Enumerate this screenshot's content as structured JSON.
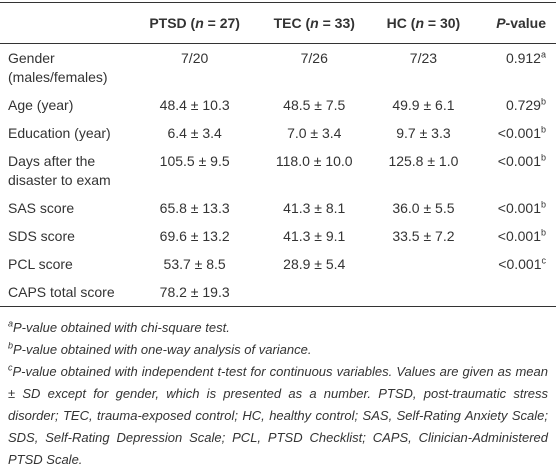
{
  "table": {
    "header": [
      [],
      [
        {
          "text": "PTSD ("
        },
        {
          "text": "n",
          "italic": true
        },
        {
          "text": " = 27)"
        }
      ],
      [
        {
          "text": "TEC ("
        },
        {
          "text": "n",
          "italic": true
        },
        {
          "text": " = 33)"
        }
      ],
      [
        {
          "text": "HC ("
        },
        {
          "text": "n",
          "italic": true
        },
        {
          "text": " = 30)"
        }
      ],
      [
        {
          "text": "P",
          "italic": true
        },
        {
          "text": "-value"
        }
      ]
    ],
    "rows": [
      [
        "Gender (males/females)",
        "7/20",
        "7/26",
        "7/23",
        {
          "value": "0.912",
          "note": "a"
        }
      ],
      [
        "Age (year)",
        "48.4 ± 10.3",
        "48.5 ± 7.5",
        "49.9 ± 6.1",
        {
          "value": "0.729",
          "note": "b"
        }
      ],
      [
        "Education (year)",
        "6.4 ± 3.4",
        "7.0 ± 3.4",
        "9.7 ± 3.3",
        {
          "value": "<0.001",
          "note": "b"
        }
      ],
      [
        "Days after the disaster to exam",
        "105.5 ± 9.5",
        "118.0 ± 10.0",
        "125.8 ± 1.0",
        {
          "value": "<0.001",
          "note": "b"
        }
      ],
      [
        "SAS score",
        "65.8 ± 13.3",
        "41.3 ± 8.1",
        "36.0 ± 5.5",
        {
          "value": "<0.001",
          "note": "b"
        }
      ],
      [
        "SDS score",
        "69.6 ± 13.2",
        "41.3 ± 9.1",
        "33.5 ± 7.2",
        {
          "value": "<0.001",
          "note": "b"
        }
      ],
      [
        "PCL score",
        "53.7 ± 8.5",
        "28.9 ± 5.4",
        null,
        {
          "value": "<0.001",
          "note": "c"
        }
      ],
      [
        "CAPS total score",
        "78.2 ± 19.3",
        null,
        null,
        null
      ]
    ]
  },
  "footnotes": [
    {
      "mark": "a",
      "text": "P-value obtained with chi-square test."
    },
    {
      "mark": "b",
      "text": "P-value obtained with one-way analysis of variance."
    },
    {
      "mark": "c",
      "text": "P-value obtained with independent t-test for continuous variables. Values are given as mean ± SD except for gender, which is presented as a number. PTSD, post-traumatic stress disorder; TEC, trauma-exposed control; HC, healthy control; SAS, Self-Rating Anxiety Scale; SDS, Self-Rating Depression Scale; PCL, PTSD Checklist; CAPS, Clinician-Administered PTSD Scale."
    }
  ]
}
